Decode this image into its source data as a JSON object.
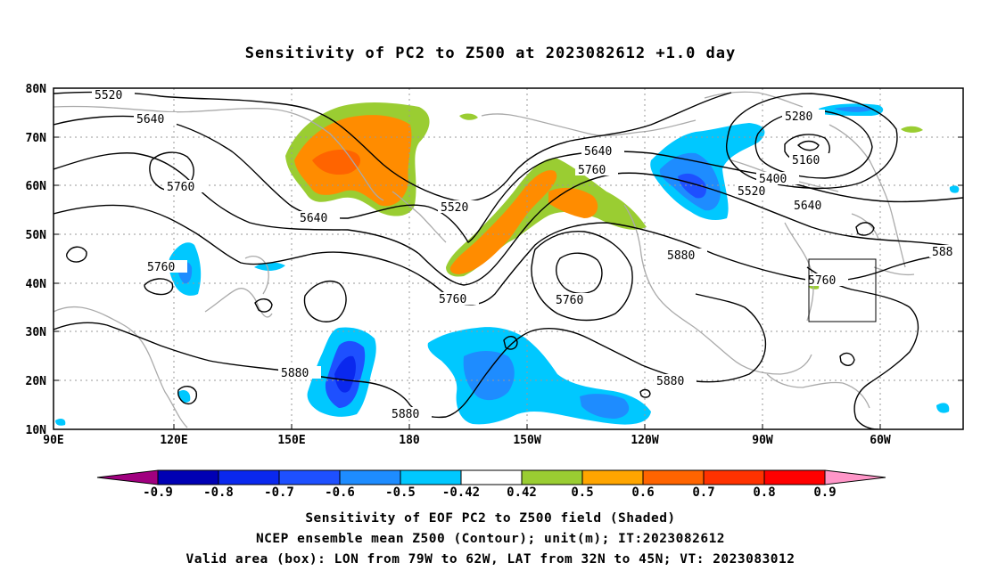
{
  "title": "Sensitivity of PC2 to Z500 at 2023082612 +1.0 day",
  "map": {
    "lat_labels": [
      "80N",
      "70N",
      "60N",
      "50N",
      "40N",
      "30N",
      "20N",
      "10N"
    ],
    "lon_labels": [
      "90E",
      "120E",
      "150E",
      "180",
      "150W",
      "120W",
      "90W",
      "60W"
    ],
    "contour_labels": [
      "5520",
      "5640",
      "5760",
      "5640",
      "5520",
      "5640",
      "5760",
      "5760",
      "5760",
      "5880",
      "5880",
      "5760",
      "5880",
      "5880",
      "5280",
      "5160",
      "5400",
      "5520",
      "5640",
      "5760",
      "588"
    ],
    "valid_box": {
      "lon_from": "79W",
      "lon_to": "62W",
      "lat_from": "32N",
      "lat_to": "45N"
    }
  },
  "colorbar": {
    "tick_labels": [
      "-0.9",
      "-0.8",
      "-0.7",
      "-0.6",
      "-0.5",
      "-0.42",
      "0.42",
      "0.5",
      "0.6",
      "0.7",
      "0.8",
      "0.9"
    ],
    "colors": [
      "#a0007f",
      "#0000b4",
      "#0a28ee",
      "#1e50ff",
      "#1e8cff",
      "#00c8ff",
      "#ffffff",
      "#9acd32",
      "#ffa500",
      "#ff6400",
      "#ff3200",
      "#ff0000",
      "#ff96c8"
    ]
  },
  "captions": [
    "Sensitivity of EOF PC2 to Z500 field (Shaded)",
    "NCEP ensemble mean Z500 (Contour); unit(m); IT:2023082612",
    "Valid area (box): LON from 79W to 62W, LAT from 32N to 45N; VT: 2023083012"
  ]
}
